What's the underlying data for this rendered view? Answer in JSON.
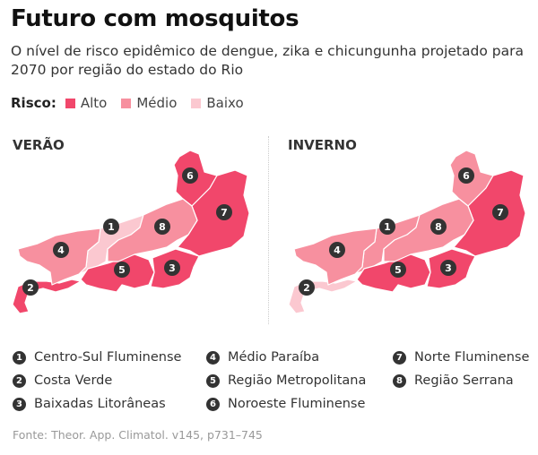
{
  "header": {
    "title": "Futuro com mosquitos",
    "subtitle": "O nível de risco epidêmico de dengue, zika e chicungunha projetado para 2070 por região do estado do Rio"
  },
  "legend": {
    "label": "Risco:",
    "items": [
      {
        "label": "Alto",
        "color": "#f1476b"
      },
      {
        "label": "Médio",
        "color": "#f7909f"
      },
      {
        "label": "Baixo",
        "color": "#fbc8d0"
      }
    ]
  },
  "maps": [
    {
      "season": "VERÃO",
      "risk": {
        "1": "Baixo",
        "2": "Alto",
        "3": "Alto",
        "4": "Médio",
        "5": "Alto",
        "6": "Alto",
        "7": "Alto",
        "8": "Médio"
      }
    },
    {
      "season": "INVERNO",
      "risk": {
        "1": "Médio",
        "2": "Baixo",
        "3": "Alto",
        "4": "Médio",
        "5": "Alto",
        "6": "Médio",
        "7": "Alto",
        "8": "Médio"
      }
    }
  ],
  "regions": [
    {
      "num": "1",
      "name": "Centro-Sul Fluminense"
    },
    {
      "num": "2",
      "name": "Costa Verde"
    },
    {
      "num": "3",
      "name": "Baixadas Litorâneas"
    },
    {
      "num": "4",
      "name": "Médio Paraíba"
    },
    {
      "num": "5",
      "name": "Região Metropolitana"
    },
    {
      "num": "6",
      "name": "Noroeste Fluminense"
    },
    {
      "num": "7",
      "name": "Norte Fluminense"
    },
    {
      "num": "8",
      "name": "Região Serrana"
    }
  ],
  "source": "Fonte: Theor. App. Climatol. v145, p731–745"
}
